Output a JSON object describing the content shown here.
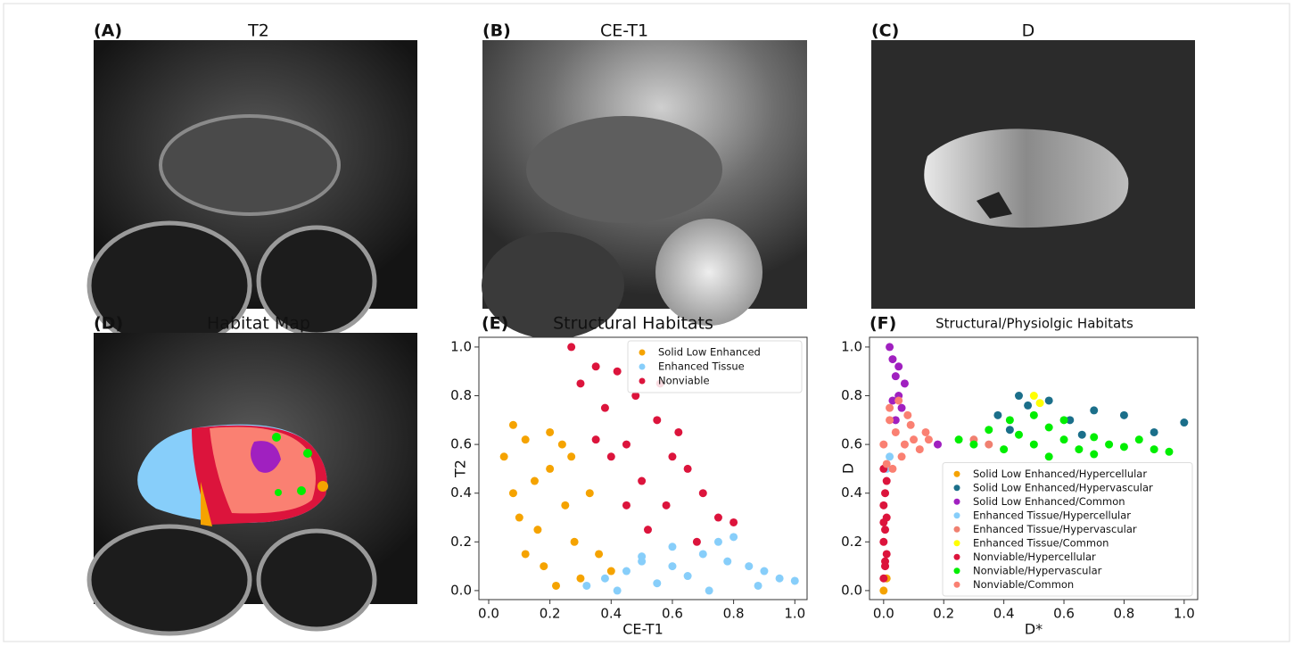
{
  "panels": [
    {
      "label": "(A)",
      "title": "T2"
    },
    {
      "label": "(B)",
      "title": "CE-T1"
    },
    {
      "label": "(C)",
      "title": "D"
    },
    {
      "label": "(D)",
      "title": "Habitat Map"
    }
  ],
  "chart_data": [
    {
      "type": "scatter",
      "label": "(E)",
      "title": "Structural Habitats",
      "xlabel": "CE-T1",
      "ylabel": "T2",
      "xlim": [
        -0.032,
        1.04
      ],
      "ylim": [
        -0.037,
        1.04
      ],
      "xticks": [
        {
          "value": 0,
          "label": "0.0"
        },
        0.2,
        0.4,
        0.6,
        0.8,
        {
          "value": 1,
          "label": "1.0"
        }
      ],
      "yticks": [
        {
          "value": 0,
          "label": "0.0"
        },
        0.2,
        0.4,
        0.6,
        0.8,
        {
          "value": 1,
          "label": "1.0"
        }
      ],
      "legend": "upper right",
      "series": [
        {
          "name": "Solid Low Enhanced",
          "color": "#f5a300",
          "x": [
            0.05,
            0.08,
            0.1,
            0.12,
            0.15,
            0.18,
            0.2,
            0.22,
            0.25,
            0.28,
            0.3,
            0.33,
            0.36,
            0.4,
            0.12,
            0.2,
            0.27,
            0.08,
            0.16,
            0.24
          ],
          "y": [
            0.55,
            0.68,
            0.3,
            0.62,
            0.45,
            0.1,
            0.5,
            0.02,
            0.35,
            0.2,
            0.05,
            0.4,
            0.15,
            0.08,
            0.15,
            0.65,
            0.55,
            0.4,
            0.25,
            0.6
          ]
        },
        {
          "name": "Enhanced Tissue",
          "color": "#87cefa",
          "x": [
            0.32,
            0.38,
            0.45,
            0.5,
            0.55,
            0.6,
            0.65,
            0.7,
            0.75,
            0.8,
            0.85,
            0.9,
            0.95,
            1.0,
            0.72,
            0.78,
            0.88,
            0.6,
            0.5,
            0.42
          ],
          "y": [
            0.02,
            0.05,
            0.08,
            0.12,
            0.03,
            0.1,
            0.06,
            0.15,
            0.2,
            0.22,
            0.1,
            0.08,
            0.05,
            0.04,
            0.0,
            0.12,
            0.02,
            0.18,
            0.14,
            0.0
          ]
        },
        {
          "name": "Nonviable",
          "color": "#dc143c",
          "x": [
            0.27,
            0.3,
            0.35,
            0.38,
            0.42,
            0.45,
            0.48,
            0.5,
            0.55,
            0.58,
            0.6,
            0.65,
            0.7,
            0.75,
            0.8,
            0.4,
            0.52,
            0.62,
            0.45,
            0.35,
            0.68,
            0.56
          ],
          "y": [
            1.0,
            0.85,
            0.92,
            0.75,
            0.9,
            0.6,
            0.8,
            0.45,
            0.7,
            0.35,
            0.55,
            0.5,
            0.4,
            0.3,
            0.28,
            0.55,
            0.25,
            0.65,
            0.35,
            0.62,
            0.2,
            0.85
          ]
        }
      ]
    },
    {
      "type": "scatter",
      "label": "(F)",
      "title": "Structural/Physiolgic Habitats",
      "xlabel": "D*",
      "ylabel": "D",
      "xlim": [
        -0.047,
        1.045
      ],
      "ylim": [
        -0.037,
        1.04
      ],
      "xticks": [
        {
          "value": 0,
          "label": "0.0"
        },
        0.2,
        0.4,
        0.6,
        0.8,
        {
          "value": 1,
          "label": "1.0"
        }
      ],
      "yticks": [
        {
          "value": 0,
          "label": "0.0"
        },
        0.2,
        0.4,
        0.6,
        0.8,
        {
          "value": 1,
          "label": "1.0"
        }
      ],
      "legend": "lower right",
      "series": [
        {
          "name": "Solid Low Enhanced/Hypercellular",
          "color": "#f5a300",
          "x": [
            0.0,
            0.01
          ],
          "y": [
            0.0,
            0.05
          ]
        },
        {
          "name": "Solid Low Enhanced/Hypervascular",
          "color": "#1b6f8a",
          "x": [
            0.38,
            0.45,
            0.48,
            0.55,
            0.62,
            0.7,
            0.8,
            0.9,
            1.0,
            0.42,
            0.66
          ],
          "y": [
            0.72,
            0.8,
            0.76,
            0.78,
            0.7,
            0.74,
            0.72,
            0.65,
            0.69,
            0.66,
            0.64
          ]
        },
        {
          "name": "Solid Low Enhanced/Common",
          "color": "#a020c0",
          "x": [
            0.02,
            0.03,
            0.04,
            0.05,
            0.06,
            0.05,
            0.04,
            0.07,
            0.03,
            0.18
          ],
          "y": [
            1.0,
            0.95,
            0.88,
            0.8,
            0.75,
            0.92,
            0.7,
            0.85,
            0.78,
            0.6
          ]
        },
        {
          "name": "Enhanced Tissue/Hypercellular",
          "color": "#87cefa",
          "x": [
            0.01,
            0.02
          ],
          "y": [
            0.5,
            0.55
          ]
        },
        {
          "name": "Enhanced Tissue/Hypervascular",
          "color": "#f08070",
          "x": [
            0.3,
            0.35
          ],
          "y": [
            0.62,
            0.6
          ]
        },
        {
          "name": "Enhanced Tissue/Common",
          "color": "#ffff00",
          "x": [
            0.5,
            0.52
          ],
          "y": [
            0.8,
            0.77
          ]
        },
        {
          "name": "Nonviable/Hypercellular",
          "color": "#dc143c",
          "x": [
            0.0,
            0.005,
            0.01,
            0.0,
            0.005,
            0.01,
            0.0,
            0.005,
            0.01,
            0.0,
            0.005,
            0.0
          ],
          "y": [
            0.05,
            0.1,
            0.15,
            0.2,
            0.25,
            0.3,
            0.35,
            0.4,
            0.45,
            0.5,
            0.12,
            0.28
          ]
        },
        {
          "name": "Nonviable/Hypervascular",
          "color": "#00ee00",
          "x": [
            0.25,
            0.3,
            0.35,
            0.4,
            0.45,
            0.5,
            0.55,
            0.6,
            0.65,
            0.7,
            0.75,
            0.8,
            0.85,
            0.9,
            0.95,
            0.5,
            0.6,
            0.7,
            0.42,
            0.55
          ],
          "y": [
            0.62,
            0.6,
            0.66,
            0.58,
            0.64,
            0.6,
            0.67,
            0.62,
            0.58,
            0.63,
            0.6,
            0.59,
            0.62,
            0.58,
            0.57,
            0.72,
            0.7,
            0.56,
            0.7,
            0.55
          ]
        },
        {
          "name": "Nonviable/Common",
          "color": "#fa8072",
          "x": [
            0.0,
            0.02,
            0.04,
            0.06,
            0.08,
            0.1,
            0.12,
            0.14,
            0.03,
            0.05,
            0.07,
            0.09,
            0.01,
            0.02,
            0.15
          ],
          "y": [
            0.6,
            0.7,
            0.65,
            0.55,
            0.72,
            0.62,
            0.58,
            0.65,
            0.5,
            0.78,
            0.6,
            0.68,
            0.52,
            0.75,
            0.62
          ]
        }
      ]
    }
  ]
}
